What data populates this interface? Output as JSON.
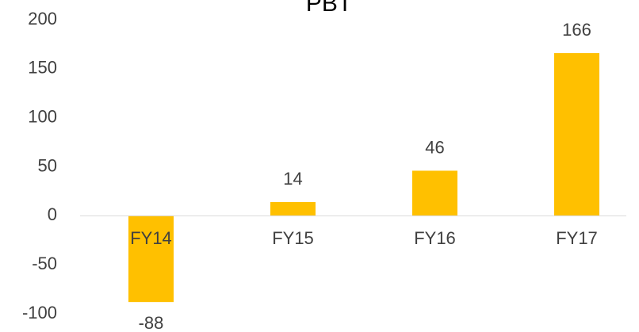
{
  "chart_data": {
    "type": "bar",
    "title": "PBT",
    "categories": [
      "FY14",
      "FY15",
      "FY16",
      "FY17"
    ],
    "values": [
      -88,
      14,
      46,
      166
    ],
    "color": "#ffc000",
    "ylim": [
      -100,
      200
    ],
    "yticks": [
      -100,
      -50,
      0,
      50,
      100,
      150,
      200
    ],
    "grid": false
  }
}
